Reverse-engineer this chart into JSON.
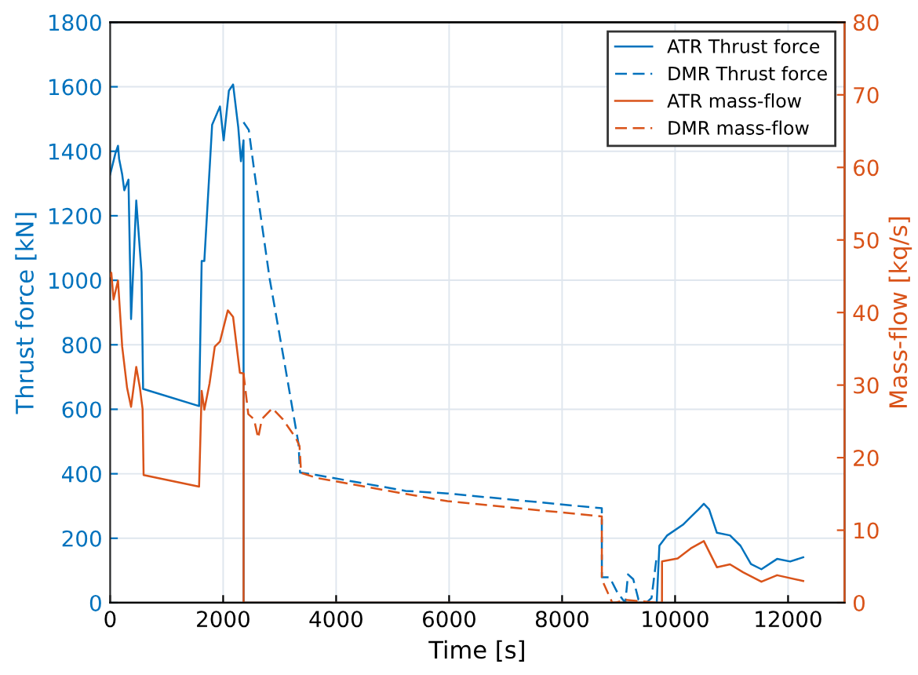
{
  "chart_data": {
    "type": "line",
    "xlabel": "Time [s]",
    "ylabel": "Thrust force [kN]",
    "y2label": "Mass-flow [kq/s]",
    "xlim": [
      0,
      13000
    ],
    "xticks": [
      0,
      2000,
      4000,
      6000,
      8000,
      10000,
      12000
    ],
    "ylim": [
      0,
      1800
    ],
    "yticks": [
      0,
      200,
      400,
      600,
      800,
      1000,
      1200,
      1400,
      1600,
      1800
    ],
    "y2lim": [
      0,
      80
    ],
    "y2ticks": [
      0,
      10,
      20,
      30,
      40,
      50,
      60,
      70,
      80
    ],
    "grid": true,
    "legend": "top right",
    "marker": "none",
    "series": [
      {
        "name": "ATR Thrust force",
        "color": "#0072bd",
        "line_style": "solid",
        "x": [
          0,
          92,
          139,
          158,
          213,
          250,
          324,
          370,
          462,
          555,
          583,
          1574,
          1620,
          1667,
          1805,
          1944,
          2009,
          2102,
          2176,
          2268,
          2315,
          2361,
          2362,
          9675,
          9722,
          9861,
          10139,
          10278,
          10417,
          10509,
          10602,
          10740,
          10972,
          11157,
          11343,
          11528,
          11806,
          12037,
          12268
        ],
        "values": [
          1328,
          1393,
          1417,
          1377,
          1328,
          1279,
          1312,
          880,
          1247,
          1025,
          663,
          610,
          1060,
          1060,
          1482,
          1539,
          1434,
          1588,
          1607,
          1474,
          1369,
          1434,
          0,
          0,
          177,
          209,
          242,
          266,
          290,
          307,
          290,
          217,
          209,
          177,
          120,
          104,
          136,
          128,
          141
        ]
      },
      {
        "name": "DMR Thrust force",
        "color": "#0072bd",
        "line_style": "dashed",
        "x": [
          2361,
          2454,
          2546,
          2824,
          3102,
          3334,
          3361,
          3658,
          5232,
          5972,
          8703,
          8704,
          8842,
          8981,
          9119,
          9167,
          9260,
          9352,
          9491,
          9583,
          9675
        ],
        "values": [
          1490,
          1466,
          1345,
          1004,
          728,
          493,
          404,
          396,
          347,
          339,
          293,
          79,
          79,
          31,
          0,
          88,
          73,
          10,
          0,
          15,
          144
        ]
      },
      {
        "name": "ATR mass-flow",
        "color": "#d95319",
        "line_style": "solid",
        "axis": "y2",
        "x": [
          0,
          20,
          60,
          139,
          213,
          300,
          370,
          462,
          527,
          574,
          592,
          1574,
          1620,
          1667,
          1759,
          1852,
          1944,
          2083,
          2176,
          2296,
          2361,
          2362,
          9768,
          9769,
          10046,
          10278,
          10509,
          10740,
          10972,
          11204,
          11528,
          11806,
          12268
        ],
        "values": [
          45,
          45.5,
          41.8,
          44.4,
          35.3,
          29.6,
          27,
          32.5,
          29.6,
          26.7,
          17.6,
          16,
          29.2,
          26.6,
          30.2,
          35.3,
          36,
          40.3,
          39.4,
          31.7,
          31.6,
          0,
          0,
          5.7,
          6.1,
          7.5,
          8.5,
          4.9,
          5.3,
          4.2,
          2.9,
          3.8,
          3.0
        ]
      },
      {
        "name": "DMR mass-flow",
        "color": "#d95319",
        "line_style": "dashed",
        "axis": "y2",
        "x": [
          2361,
          2445,
          2546,
          2620,
          2685,
          2870,
          3056,
          3287,
          3352,
          3380,
          3658,
          5232,
          5972,
          8703,
          8704,
          8889,
          8934,
          9119,
          9700
        ],
        "values": [
          31.6,
          26,
          25.3,
          22.7,
          25.3,
          26.8,
          25.3,
          22.7,
          21.6,
          17.9,
          17.2,
          15,
          14,
          11.9,
          3.2,
          0,
          0,
          0.4,
          0
        ]
      }
    ]
  }
}
